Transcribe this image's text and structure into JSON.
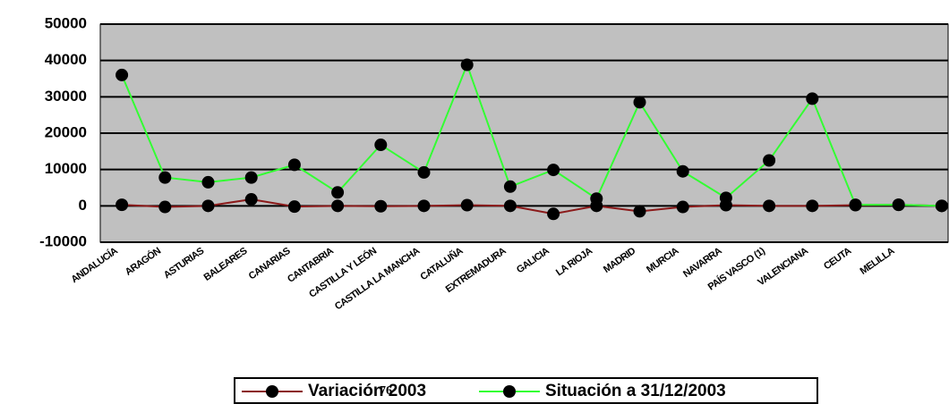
{
  "chart_data": {
    "type": "line",
    "categories": [
      "ANDALUCÍA",
      "ARAGÓN",
      "ASTURIAS",
      "BALEARES",
      "CANARIAS",
      "CANTABRIA",
      "CASTILLA Y LEÓN",
      "CASTILLA LA MANCHA",
      "CATALUÑA",
      "EXTREMADURA",
      "GALICIA",
      "LA RIOJA",
      "MADRID",
      "MURCIA",
      "NAVARRA",
      "PAÍS VASCO (1)",
      "VALENCIANA",
      "CEUTA",
      "MELILLA",
      null
    ],
    "series": [
      {
        "name": "Variación 2003",
        "color": "#8b1a1a",
        "values": [
          300,
          -300,
          0,
          1800,
          -200,
          0,
          -100,
          0,
          200,
          0,
          -2200,
          0,
          -1500,
          -300,
          200,
          0,
          0,
          200,
          300,
          0
        ]
      },
      {
        "name": "Situación a 31/12/2003",
        "color": "#33ff33",
        "values": [
          36000,
          7800,
          6500,
          7800,
          11300,
          3700,
          16800,
          9200,
          38800,
          5300,
          9900,
          2000,
          28500,
          9500,
          2200,
          12500,
          29500,
          300,
          300,
          0
        ]
      }
    ],
    "ylim": [
      -10000,
      50000
    ],
    "yticks": [
      -10000,
      0,
      10000,
      20000,
      30000,
      40000,
      50000
    ],
    "grid": true,
    "legend": "bottom",
    "page_number": "76"
  }
}
